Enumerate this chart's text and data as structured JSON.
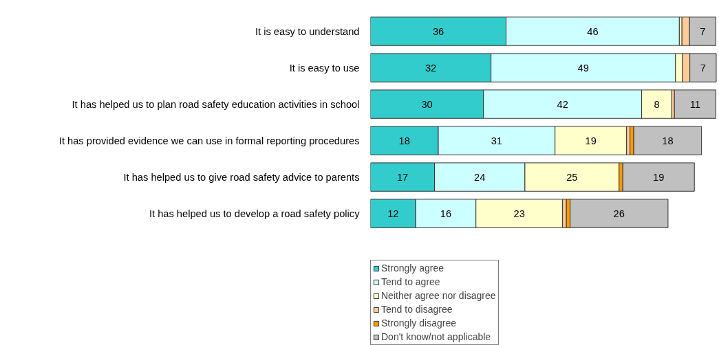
{
  "chart_data": {
    "type": "bar",
    "orientation": "horizontal",
    "stacked": true,
    "legend": "bottom left",
    "tick_labels": "y",
    "categories": [
      "It is easy to understand",
      "It is easy to use",
      "It has helped us to plan road safety education activities in school",
      "It has provided evidence we can use in formal reporting procedures",
      "It has helped us to give road safety advice to parents",
      "It has helped us to develop a road safety policy"
    ],
    "series": [
      {
        "name": "Strongly agree",
        "color": "#33cccc",
        "values": [
          36,
          32,
          30,
          18,
          17,
          12
        ],
        "value_labels": [
          "36",
          "32",
          "30",
          "18",
          "17",
          "12"
        ]
      },
      {
        "name": "Tend to agree",
        "color": "#ccffff",
        "values": [
          46,
          49,
          42,
          31,
          24,
          16
        ],
        "value_labels": [
          "46",
          "49",
          "42",
          "31",
          "24",
          "16"
        ]
      },
      {
        "name": "Neither agree nor disagree",
        "color": "#ffffcc",
        "values": [
          0.7,
          1.8,
          8,
          19,
          25,
          23
        ],
        "value_labels": [
          null,
          null,
          "8",
          "19",
          "25",
          "23"
        ]
      },
      {
        "name": "Tend to disagree",
        "color": "#ffcc99",
        "values": [
          2,
          2,
          0.7,
          0.9,
          null,
          1
        ],
        "value_labels": [
          null,
          null,
          null,
          null,
          null,
          null
        ]
      },
      {
        "name": "Strongly disagree",
        "color": "#ff9900",
        "values": [
          null,
          null,
          null,
          1,
          1,
          1
        ],
        "value_labels": [
          null,
          null,
          null,
          null,
          null,
          null
        ]
      },
      {
        "name": "Don't know/not applicable",
        "color": "#c0c0c0",
        "values": [
          7,
          7,
          11,
          18,
          19,
          26
        ],
        "value_labels": [
          "7",
          "7",
          "11",
          "18",
          "19",
          "26"
        ]
      }
    ]
  }
}
